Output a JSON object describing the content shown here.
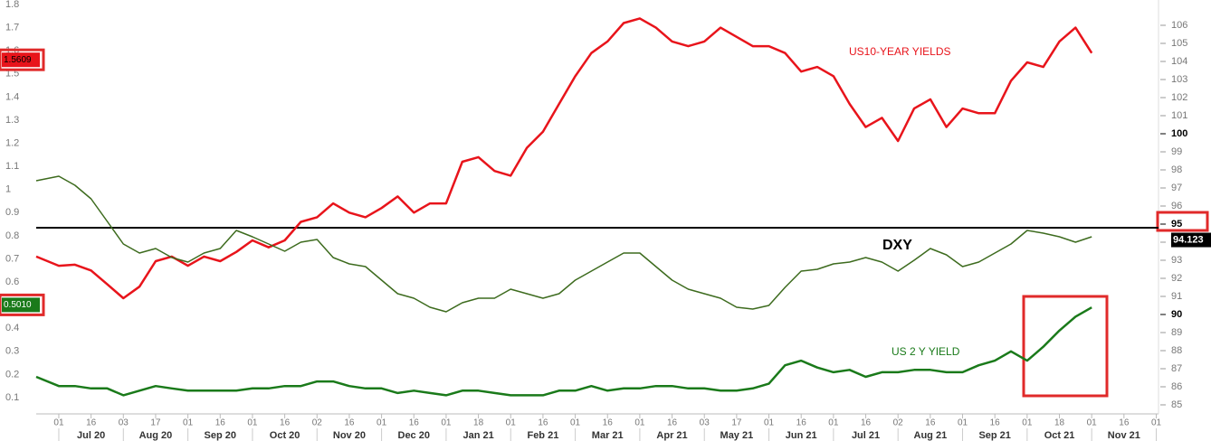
{
  "chart_data": {
    "type": "line",
    "xlim": [
      -0.7,
      34.07
    ],
    "xticks": [
      {
        "value": 0,
        "label": "01"
      },
      {
        "value": 1,
        "label": "16"
      },
      {
        "value": 2,
        "label": "03"
      },
      {
        "value": 3,
        "label": "17"
      },
      {
        "value": 4,
        "label": "01"
      },
      {
        "value": 5,
        "label": "16"
      },
      {
        "value": 6,
        "label": "01"
      },
      {
        "value": 7,
        "label": "16"
      },
      {
        "value": 8,
        "label": "02"
      },
      {
        "value": 9,
        "label": "16"
      },
      {
        "value": 10,
        "label": "01"
      },
      {
        "value": 11,
        "label": "16"
      },
      {
        "value": 12,
        "label": "01"
      },
      {
        "value": 13,
        "label": "18"
      },
      {
        "value": 14,
        "label": "01"
      },
      {
        "value": 15,
        "label": "16"
      },
      {
        "value": 16,
        "label": "01"
      },
      {
        "value": 17,
        "label": "16"
      },
      {
        "value": 18,
        "label": "01"
      },
      {
        "value": 19,
        "label": "16"
      },
      {
        "value": 20,
        "label": "03"
      },
      {
        "value": 21,
        "label": "17"
      },
      {
        "value": 22,
        "label": "01"
      },
      {
        "value": 23,
        "label": "16"
      },
      {
        "value": 24,
        "label": "01"
      },
      {
        "value": 25,
        "label": "16"
      },
      {
        "value": 26,
        "label": "02"
      },
      {
        "value": 27,
        "label": "16"
      },
      {
        "value": 28,
        "label": "01"
      },
      {
        "value": 29,
        "label": "16"
      },
      {
        "value": 30,
        "label": "01"
      },
      {
        "value": 31,
        "label": "18"
      },
      {
        "value": 32,
        "label": "01"
      },
      {
        "value": 33,
        "label": "16"
      },
      {
        "value": 34,
        "label": "01"
      }
    ],
    "months": [
      {
        "value": 1,
        "label": "Jul 20"
      },
      {
        "value": 3,
        "label": "Aug 20"
      },
      {
        "value": 5,
        "label": "Sep 20"
      },
      {
        "value": 7,
        "label": "Oct 20"
      },
      {
        "value": 9,
        "label": "Nov 20"
      },
      {
        "value": 11,
        "label": "Dec 20"
      },
      {
        "value": 13,
        "label": "Jan 21"
      },
      {
        "value": 15,
        "label": "Feb 21"
      },
      {
        "value": 17,
        "label": "Mar 21"
      },
      {
        "value": 19,
        "label": "Apr 21"
      },
      {
        "value": 21,
        "label": "May 21"
      },
      {
        "value": 23,
        "label": "Jun 21"
      },
      {
        "value": 25,
        "label": "Jul 21"
      },
      {
        "value": 27,
        "label": "Aug 21"
      },
      {
        "value": 29,
        "label": "Sep 21"
      },
      {
        "value": 31,
        "label": "Oct 21"
      },
      {
        "value": 33,
        "label": "Nov 21"
      }
    ],
    "ylim": [
      0.1,
      1.8
    ],
    "yticks": [
      0.1,
      0.2,
      0.3,
      0.4,
      0.5,
      0.6,
      0.7,
      0.8,
      0.9,
      1,
      1.1,
      1.2,
      1.3,
      1.4,
      1.5,
      1.6,
      1.7,
      1.8
    ],
    "y2lim": [
      85.4,
      107.15
    ],
    "y2ticks": [
      85,
      86,
      87,
      88,
      89,
      90,
      91,
      92,
      93,
      94,
      95,
      96,
      97,
      98,
      99,
      100,
      101,
      102,
      103,
      104,
      105,
      106
    ],
    "y2ticks_bold": [
      90,
      95,
      100
    ],
    "hline": {
      "value": 94.8,
      "axis": "y2",
      "color": "#000000"
    },
    "x": [
      -0.7,
      0,
      0.5,
      1,
      1.5,
      2,
      2.5,
      3,
      3.5,
      4,
      4.5,
      5,
      5.5,
      6,
      6.5,
      7,
      7.5,
      8,
      8.5,
      9,
      9.5,
      10,
      10.5,
      11,
      11.5,
      12,
      12.5,
      13,
      13.5,
      14,
      14.5,
      15,
      15.5,
      16,
      16.5,
      17,
      17.5,
      18,
      18.5,
      19,
      19.5,
      20,
      20.5,
      21,
      21.5,
      22,
      22.5,
      23,
      23.5,
      24,
      24.5,
      25,
      25.5,
      26,
      26.5,
      27,
      27.5,
      28,
      28.5,
      29,
      29.5,
      30,
      30.5,
      31,
      31.5,
      32
    ],
    "series": [
      {
        "name": "US10-YEAR YIELDS",
        "color": "#e8141b",
        "width": 2.5,
        "values": [
          0.71,
          0.67,
          0.675,
          0.65,
          0.59,
          0.53,
          0.58,
          0.69,
          0.71,
          0.67,
          0.71,
          0.69,
          0.73,
          0.78,
          0.75,
          0.78,
          0.86,
          0.88,
          0.94,
          0.9,
          0.88,
          0.92,
          0.97,
          0.9,
          0.94,
          0.94,
          1.12,
          1.14,
          1.08,
          1.06,
          1.18,
          1.25,
          1.37,
          1.49,
          1.59,
          1.64,
          1.72,
          1.74,
          1.7,
          1.64,
          1.62,
          1.64,
          1.7,
          1.66,
          1.62,
          1.62,
          1.59,
          1.51,
          1.53,
          1.49,
          1.37,
          1.27,
          1.31,
          1.21,
          1.35,
          1.39,
          1.27,
          1.35,
          1.33,
          1.33,
          1.47,
          1.55,
          1.53,
          1.64,
          1.7,
          1.59
        ],
        "last": 1.5609
      },
      {
        "name": "US 2 Y YIELD",
        "color": "#1a7a1a",
        "width": 2.5,
        "values": [
          0.19,
          0.15,
          0.15,
          0.14,
          0.14,
          0.11,
          0.13,
          0.15,
          0.14,
          0.13,
          0.13,
          0.13,
          0.13,
          0.14,
          0.14,
          0.15,
          0.15,
          0.17,
          0.17,
          0.15,
          0.14,
          0.14,
          0.12,
          0.13,
          0.12,
          0.11,
          0.13,
          0.13,
          0.12,
          0.11,
          0.11,
          0.11,
          0.13,
          0.13,
          0.15,
          0.13,
          0.14,
          0.14,
          0.15,
          0.15,
          0.14,
          0.14,
          0.13,
          0.13,
          0.14,
          0.16,
          0.24,
          0.26,
          0.23,
          0.21,
          0.22,
          0.19,
          0.21,
          0.21,
          0.22,
          0.22,
          0.21,
          0.21,
          0.24,
          0.26,
          0.3,
          0.26,
          0.32,
          0.39,
          0.45,
          0.49
        ],
        "last": {
          "value": 0.501,
          "label": "0.5010"
        }
      },
      {
        "name": "DXY",
        "color": "#3d6b1e",
        "width": 1.5,
        "axis": "y2",
        "values": [
          97.4,
          97.65,
          97.15,
          96.4,
          95.15,
          93.9,
          93.4,
          93.65,
          93.15,
          92.9,
          93.4,
          93.65,
          94.65,
          94.3,
          93.9,
          93.5,
          94.0,
          94.15,
          93.15,
          92.8,
          92.65,
          91.9,
          91.15,
          90.9,
          90.4,
          90.15,
          90.65,
          90.9,
          90.9,
          91.4,
          91.15,
          90.9,
          91.15,
          91.9,
          92.4,
          92.9,
          93.4,
          93.4,
          92.65,
          91.9,
          91.4,
          91.15,
          90.9,
          90.4,
          90.3,
          90.5,
          91.5,
          92.4,
          92.5,
          92.8,
          92.9,
          93.15,
          92.9,
          92.4,
          93.0,
          93.65,
          93.3,
          92.65,
          92.9,
          93.4,
          93.9,
          94.65,
          94.5,
          94.3,
          94.0,
          94.3
        ],
        "last": 94.123
      }
    ]
  }
}
